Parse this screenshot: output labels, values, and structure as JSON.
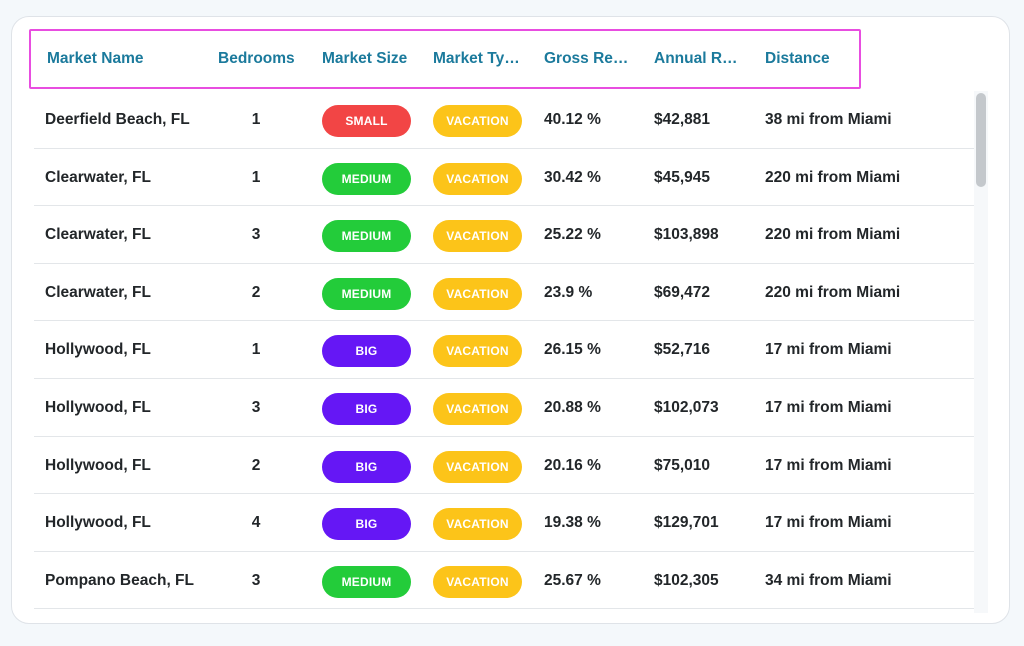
{
  "table": {
    "columns": [
      "Market Name",
      "Bedrooms",
      "Market Size",
      "Market Type",
      "Gross Rental Yield",
      "Annual Revenue",
      "Distance"
    ],
    "colors": {
      "header_text": "#1b7a9c",
      "header_highlight": "#e84de0",
      "small": "#f24545",
      "medium": "#23cc3a",
      "big": "#6517f5",
      "vacation": "#fcc419"
    },
    "rows": [
      {
        "market_name": "Deerfield Beach, FL",
        "bedrooms": "1",
        "market_size": "SMALL",
        "size_key": "small",
        "market_type": "VACATION",
        "gross_rental_yield": "40.12 %",
        "annual_revenue": "$42,881",
        "distance": "38 mi from Miami"
      },
      {
        "market_name": "Clearwater, FL",
        "bedrooms": "1",
        "market_size": "MEDIUM",
        "size_key": "medium",
        "market_type": "VACATION",
        "gross_rental_yield": "30.42 %",
        "annual_revenue": "$45,945",
        "distance": "220 mi from Miami"
      },
      {
        "market_name": "Clearwater, FL",
        "bedrooms": "3",
        "market_size": "MEDIUM",
        "size_key": "medium",
        "market_type": "VACATION",
        "gross_rental_yield": "25.22 %",
        "annual_revenue": "$103,898",
        "distance": "220 mi from Miami"
      },
      {
        "market_name": "Clearwater, FL",
        "bedrooms": "2",
        "market_size": "MEDIUM",
        "size_key": "medium",
        "market_type": "VACATION",
        "gross_rental_yield": "23.9 %",
        "annual_revenue": "$69,472",
        "distance": "220 mi from Miami"
      },
      {
        "market_name": "Hollywood, FL",
        "bedrooms": "1",
        "market_size": "BIG",
        "size_key": "big",
        "market_type": "VACATION",
        "gross_rental_yield": "26.15 %",
        "annual_revenue": "$52,716",
        "distance": "17 mi from Miami"
      },
      {
        "market_name": "Hollywood, FL",
        "bedrooms": "3",
        "market_size": "BIG",
        "size_key": "big",
        "market_type": "VACATION",
        "gross_rental_yield": "20.88 %",
        "annual_revenue": "$102,073",
        "distance": "17 mi from Miami"
      },
      {
        "market_name": "Hollywood, FL",
        "bedrooms": "2",
        "market_size": "BIG",
        "size_key": "big",
        "market_type": "VACATION",
        "gross_rental_yield": "20.16 %",
        "annual_revenue": "$75,010",
        "distance": "17 mi from Miami"
      },
      {
        "market_name": "Hollywood, FL",
        "bedrooms": "4",
        "market_size": "BIG",
        "size_key": "big",
        "market_type": "VACATION",
        "gross_rental_yield": "19.38 %",
        "annual_revenue": "$129,701",
        "distance": "17 mi from Miami"
      },
      {
        "market_name": "Pompano Beach, FL",
        "bedrooms": "3",
        "market_size": "MEDIUM",
        "size_key": "medium",
        "market_type": "VACATION",
        "gross_rental_yield": "25.67 %",
        "annual_revenue": "$102,305",
        "distance": "34 mi from Miami"
      }
    ]
  }
}
